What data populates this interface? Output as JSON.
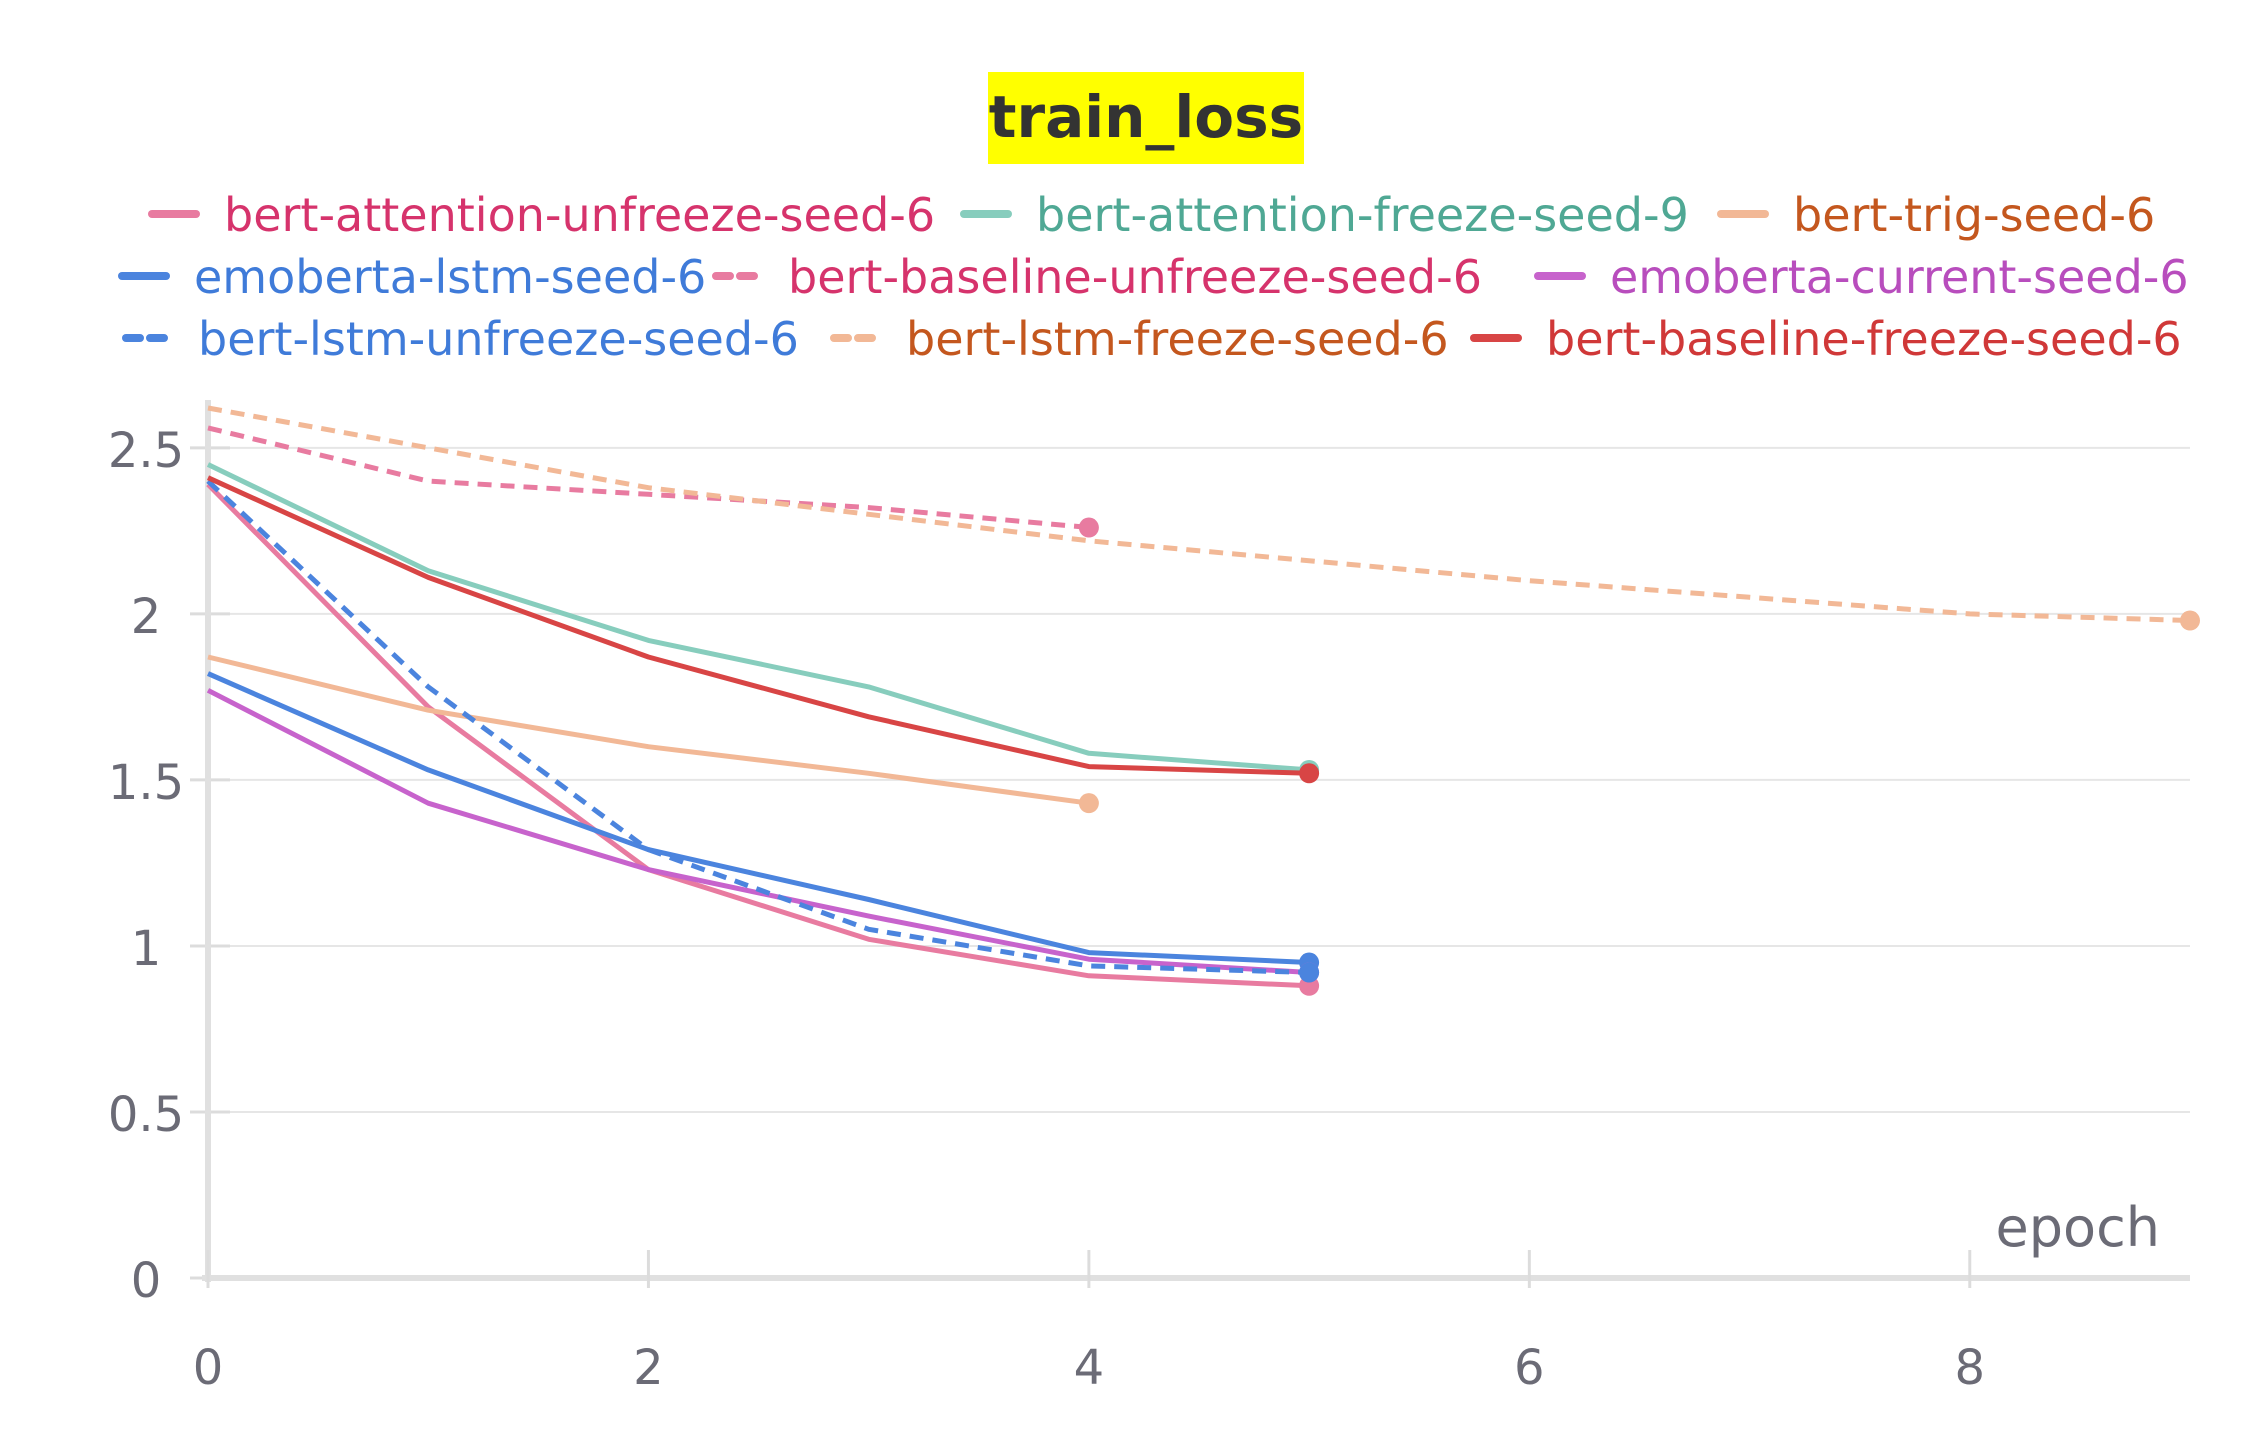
{
  "chart_data": {
    "type": "line",
    "title": "train_loss",
    "xlabel": "epoch",
    "ylabel": "",
    "xlim": [
      0,
      9
    ],
    "ylim": [
      0,
      2.65
    ],
    "grid": true,
    "legend_position": "top",
    "x_ticks": [
      "0",
      "2",
      "4",
      "6",
      "8"
    ],
    "y_ticks": [
      "0",
      "0.5",
      "1",
      "1.5",
      "2",
      "2.5"
    ],
    "series": [
      {
        "name": "bert-attention-unfreeze-seed-6",
        "color": "#e87ba0",
        "label_color": "#d6336c",
        "dash": false,
        "x": [
          0,
          1,
          2,
          3,
          4,
          5
        ],
        "y": [
          2.39,
          1.72,
          1.23,
          1.02,
          0.91,
          0.88
        ]
      },
      {
        "name": "bert-attention-freeze-seed-9",
        "color": "#87cdbd",
        "label_color": "#4fa894",
        "dash": false,
        "x": [
          0,
          1,
          2,
          3,
          4,
          5
        ],
        "y": [
          2.45,
          2.13,
          1.92,
          1.78,
          1.58,
          1.53
        ]
      },
      {
        "name": "bert-trig-seed-6",
        "color": "#f2b896",
        "label_color": "#c4571e",
        "dash": false,
        "x": [
          0,
          1,
          2,
          3,
          4
        ],
        "y": [
          1.87,
          1.71,
          1.6,
          1.52,
          1.43
        ]
      },
      {
        "name": "emoberta-lstm-seed-6",
        "color": "#4b84de",
        "label_color": "#3f7bd9",
        "dash": false,
        "x": [
          0,
          1,
          2,
          3,
          4,
          5
        ],
        "y": [
          1.82,
          1.53,
          1.29,
          1.14,
          0.98,
          0.95
        ]
      },
      {
        "name": "bert-baseline-unfreeze-seed-6",
        "color": "#e87ba0",
        "label_color": "#d6336c",
        "dash": true,
        "x": [
          0,
          1,
          2,
          3,
          4
        ],
        "y": [
          2.56,
          2.4,
          2.36,
          2.32,
          2.26
        ]
      },
      {
        "name": "emoberta-current-seed-6",
        "color": "#c763cc",
        "label_color": "#b84dbd",
        "dash": false,
        "x": [
          0,
          1,
          2,
          3,
          4,
          5
        ],
        "y": [
          1.77,
          1.43,
          1.23,
          1.09,
          0.96,
          0.92
        ]
      },
      {
        "name": "bert-lstm-unfreeze-seed-6",
        "color": "#4b84de",
        "label_color": "#3f7bd9",
        "dash": true,
        "x": [
          0,
          1,
          2,
          3,
          4,
          5
        ],
        "y": [
          2.4,
          1.78,
          1.29,
          1.05,
          0.94,
          0.92
        ]
      },
      {
        "name": "bert-lstm-freeze-seed-6",
        "color": "#f2b896",
        "label_color": "#c4571e",
        "dash": true,
        "x": [
          0,
          1,
          2,
          3,
          4,
          5,
          6,
          7,
          8,
          9
        ],
        "y": [
          2.62,
          2.5,
          2.38,
          2.3,
          2.22,
          2.16,
          2.1,
          2.05,
          2.0,
          1.98
        ]
      },
      {
        "name": "bert-baseline-freeze-seed-6",
        "color": "#d84545",
        "label_color": "#d03838",
        "dash": false,
        "x": [
          0,
          1,
          2,
          3,
          4,
          5
        ],
        "y": [
          2.41,
          2.11,
          1.87,
          1.69,
          1.54,
          1.52
        ]
      }
    ]
  }
}
